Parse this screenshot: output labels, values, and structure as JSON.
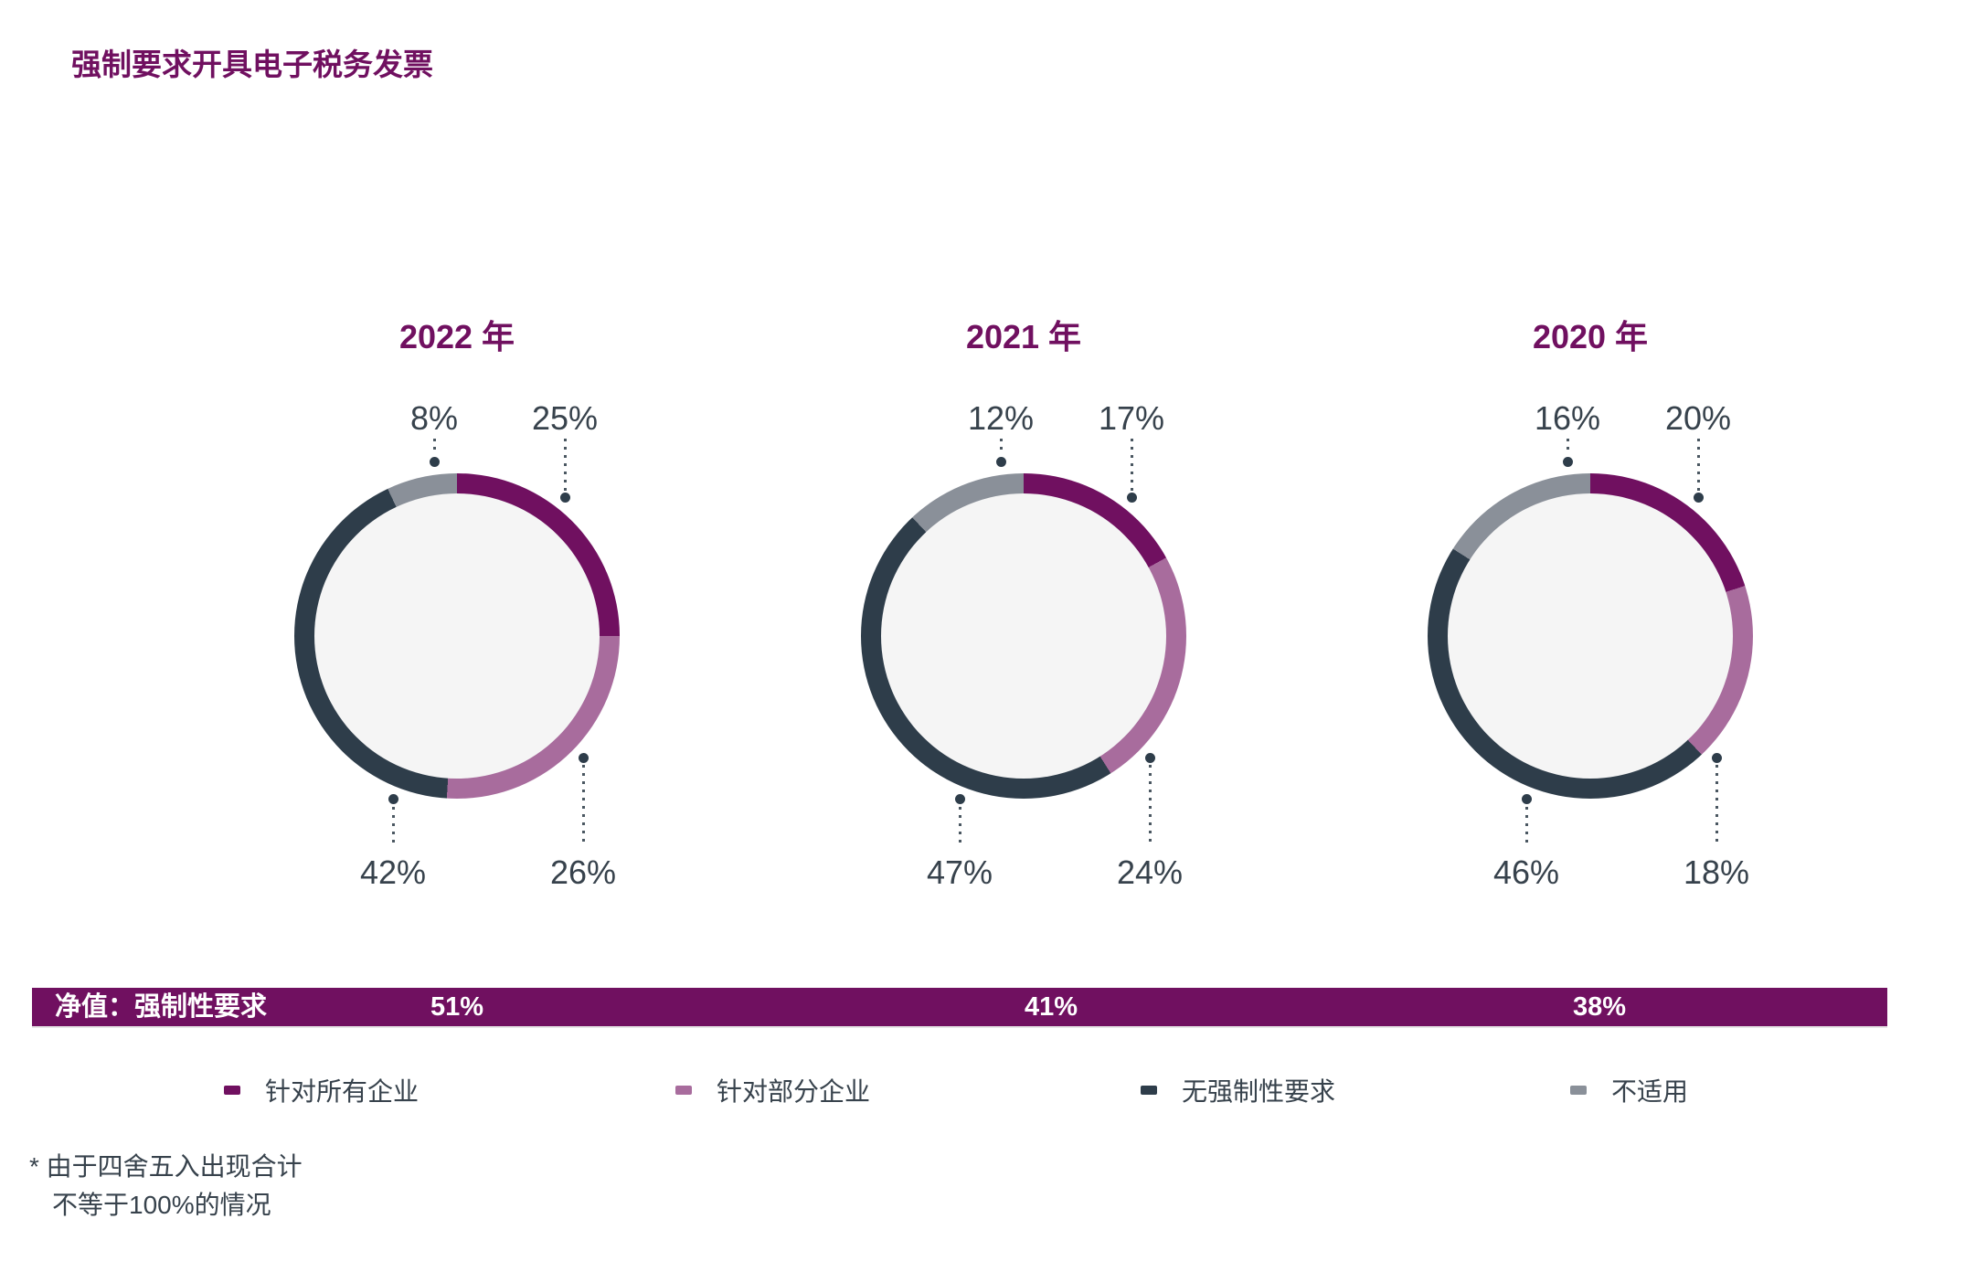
{
  "title": "强制要求开具电子税务发票",
  "chart_data": {
    "type": "donut",
    "unit": "%",
    "legend_position": "bottom",
    "legend": [
      {
        "name": "针对所有企业",
        "color": "#701060"
      },
      {
        "name": "针对部分企业",
        "color": "#A86C9D"
      },
      {
        "name": "无强制性要求",
        "color": "#2E3D4A"
      },
      {
        "name": "不适用",
        "color": "#8A9099"
      }
    ],
    "label_positions": [
      "top-right",
      "bottom-right",
      "bottom-left",
      "top-left"
    ],
    "charts": [
      {
        "title": "2022 年",
        "values": [
          {
            "series": "针对所有企业",
            "value": 25,
            "label": "25%"
          },
          {
            "series": "针对部分企业",
            "value": 26,
            "label": "26%"
          },
          {
            "series": "无强制性要求",
            "value": 42,
            "label": "42%"
          },
          {
            "series": "不适用",
            "value": 8,
            "label": "8%"
          }
        ],
        "net": "51%"
      },
      {
        "title": "2021 年",
        "values": [
          {
            "series": "针对所有企业",
            "value": 17,
            "label": "17%"
          },
          {
            "series": "针对部分企业",
            "value": 24,
            "label": "24%"
          },
          {
            "series": "无强制性要求",
            "value": 47,
            "label": "47%"
          },
          {
            "series": "不适用",
            "value": 12,
            "label": "12%"
          }
        ],
        "net": "41%"
      },
      {
        "title": "2020 年",
        "values": [
          {
            "series": "针对所有企业",
            "value": 20,
            "label": "20%"
          },
          {
            "series": "针对部分企业",
            "value": 18,
            "label": "18%"
          },
          {
            "series": "无强制性要求",
            "value": 46,
            "label": "46%"
          },
          {
            "series": "不适用",
            "value": 16,
            "label": "16%"
          }
        ],
        "net": "38%"
      }
    ],
    "net_bar_label": "净值：强制性要求",
    "net_bar_color": "#701060",
    "hole_color": "#F5F5F5"
  },
  "footnote": {
    "line1": "* 由于四舍五入出现合计",
    "line2": "不等于100%的情况"
  }
}
